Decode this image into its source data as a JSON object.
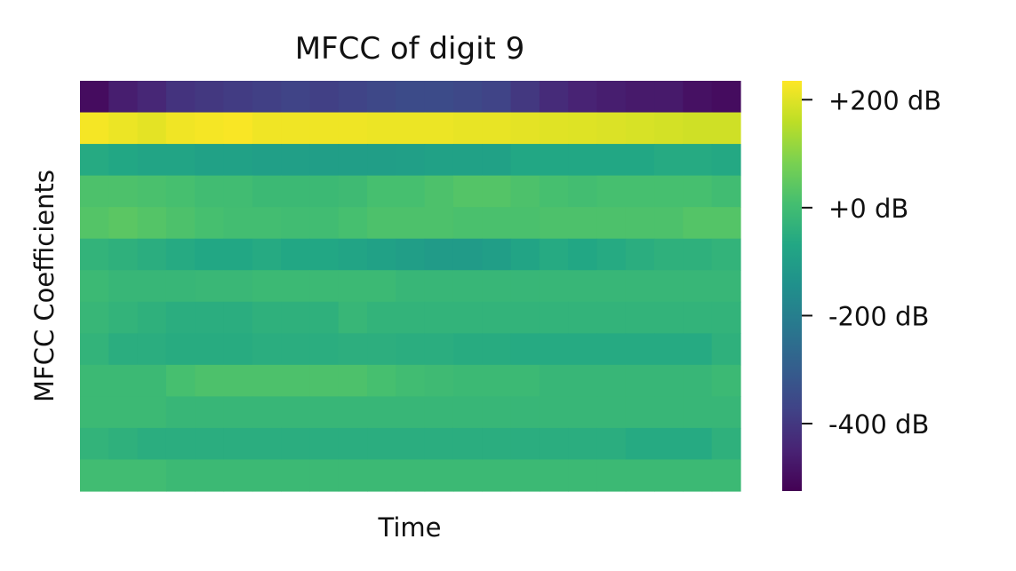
{
  "chart_data": {
    "type": "heatmap",
    "title": "MFCC of digit 9",
    "xlabel": "Time",
    "ylabel": "MFCC Coefficients",
    "colormap": "viridis",
    "grid": false,
    "color_range": [
      -525,
      235
    ],
    "colorbar": {
      "ticks": [
        200,
        0,
        -200,
        -400
      ],
      "tick_labels": [
        "+200 dB",
        "+0 dB",
        "-200 dB",
        "-400 dB"
      ]
    },
    "rows": 13,
    "cols": 23,
    "values": [
      [
        -500,
        -460,
        -440,
        -410,
        -400,
        -390,
        -380,
        -370,
        -380,
        -370,
        -360,
        -350,
        -350,
        -360,
        -370,
        -400,
        -430,
        -450,
        -460,
        -470,
        -470,
        -490,
        -500
      ],
      [
        225,
        215,
        205,
        220,
        225,
        230,
        220,
        220,
        218,
        218,
        215,
        215,
        215,
        210,
        210,
        205,
        200,
        198,
        195,
        190,
        185,
        180,
        180
      ],
      [
        -60,
        -70,
        -80,
        -80,
        -90,
        -90,
        -95,
        -95,
        -100,
        -100,
        -100,
        -95,
        -90,
        -90,
        -90,
        -70,
        -70,
        -70,
        -70,
        -70,
        -60,
        -60,
        -65
      ],
      [
        20,
        20,
        15,
        10,
        0,
        0,
        -10,
        -10,
        -10,
        -5,
        10,
        10,
        20,
        30,
        30,
        20,
        10,
        5,
        10,
        10,
        10,
        10,
        0
      ],
      [
        30,
        40,
        30,
        20,
        10,
        5,
        5,
        0,
        0,
        10,
        20,
        20,
        20,
        15,
        15,
        15,
        20,
        20,
        20,
        20,
        20,
        30,
        30
      ],
      [
        -30,
        -40,
        -50,
        -60,
        -70,
        -70,
        -60,
        -70,
        -70,
        -80,
        -90,
        -100,
        -110,
        -110,
        -100,
        -80,
        -60,
        -70,
        -60,
        -50,
        -40,
        -40,
        -30
      ],
      [
        -10,
        -20,
        -20,
        -20,
        -15,
        -15,
        -10,
        -10,
        -10,
        -10,
        -10,
        -20,
        -20,
        -20,
        -20,
        -20,
        -20,
        -20,
        -20,
        -20,
        -20,
        -20,
        -20
      ],
      [
        -20,
        -30,
        -40,
        -50,
        -50,
        -50,
        -40,
        -40,
        -40,
        -20,
        -30,
        -30,
        -30,
        -30,
        -30,
        -30,
        -30,
        -30,
        -30,
        -30,
        -30,
        -30,
        -30
      ],
      [
        -30,
        -50,
        -50,
        -55,
        -55,
        -55,
        -50,
        -50,
        -50,
        -45,
        -45,
        -50,
        -50,
        -55,
        -55,
        -60,
        -60,
        -60,
        -60,
        -60,
        -60,
        -60,
        -40
      ],
      [
        -10,
        -10,
        -10,
        10,
        20,
        20,
        20,
        20,
        20,
        20,
        10,
        0,
        -5,
        -10,
        -10,
        -10,
        -20,
        -20,
        -20,
        -20,
        -20,
        -20,
        -10
      ],
      [
        -10,
        -10,
        -10,
        -20,
        -20,
        -20,
        -20,
        -20,
        -20,
        -20,
        -20,
        -20,
        -20,
        -20,
        -20,
        -20,
        -20,
        -20,
        -20,
        -20,
        -20,
        -20,
        -20
      ],
      [
        -30,
        -40,
        -50,
        -50,
        -50,
        -50,
        -50,
        -50,
        -50,
        -50,
        -50,
        -50,
        -50,
        -50,
        -50,
        -50,
        -50,
        -50,
        -50,
        -60,
        -60,
        -60,
        -40
      ],
      [
        0,
        0,
        0,
        -10,
        -10,
        -10,
        -10,
        -10,
        -10,
        -10,
        -10,
        -10,
        -10,
        -10,
        -10,
        -10,
        -10,
        -10,
        -10,
        -10,
        -10,
        -10,
        -10
      ]
    ]
  }
}
